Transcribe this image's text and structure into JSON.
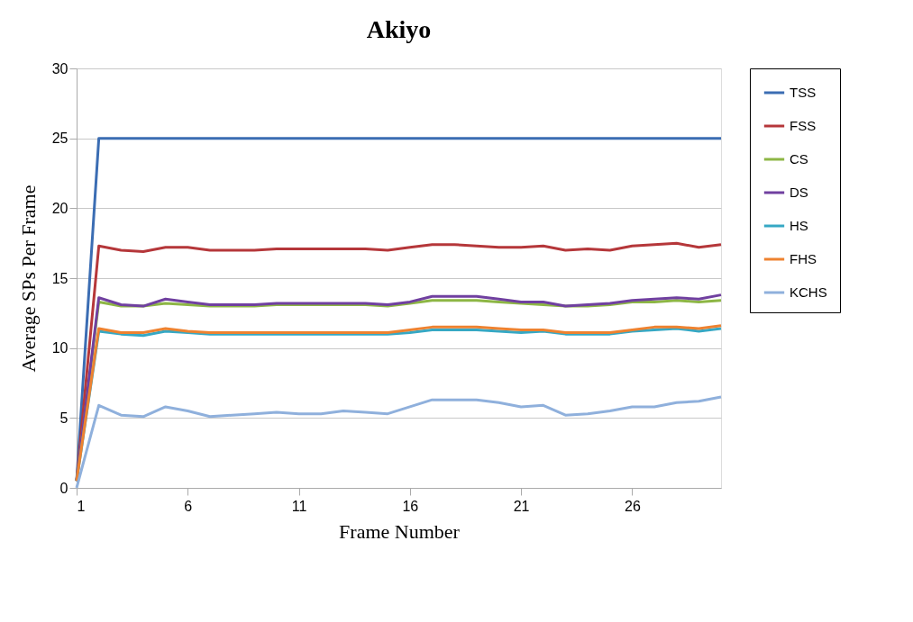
{
  "chart_data": {
    "type": "line",
    "title": "Akiyo",
    "xlabel": "Frame Number",
    "ylabel": "Average SPs Per Frame",
    "x": [
      1,
      2,
      3,
      4,
      5,
      6,
      7,
      8,
      9,
      10,
      11,
      12,
      13,
      14,
      15,
      16,
      17,
      18,
      19,
      20,
      21,
      22,
      23,
      24,
      25,
      26,
      27,
      28,
      29,
      30
    ],
    "xlim": [
      1,
      30
    ],
    "xticks": [
      1,
      6,
      11,
      16,
      21,
      26
    ],
    "ylim": [
      0,
      30
    ],
    "yticks": [
      0,
      5,
      10,
      15,
      20,
      25,
      30
    ],
    "grid": "y",
    "legend": "right",
    "marker": "none",
    "line_style": "solid",
    "series": [
      {
        "name": "TSS",
        "color": "#3b6db3",
        "values": [
          0.5,
          25,
          25,
          25,
          25,
          25,
          25,
          25,
          25,
          25,
          25,
          25,
          25,
          25,
          25,
          25,
          25,
          25,
          25,
          25,
          25,
          25,
          25,
          25,
          25,
          25,
          25,
          25,
          25,
          25
        ]
      },
      {
        "name": "FSS",
        "color": "#b5373a",
        "values": [
          0.5,
          17.3,
          17.0,
          16.9,
          17.2,
          17.2,
          17.0,
          17.0,
          17.0,
          17.1,
          17.1,
          17.1,
          17.1,
          17.1,
          17.0,
          17.2,
          17.4,
          17.4,
          17.3,
          17.2,
          17.2,
          17.3,
          17.0,
          17.1,
          17.0,
          17.3,
          17.4,
          17.5,
          17.2,
          17.4
        ]
      },
      {
        "name": "CS",
        "color": "#8db645",
        "values": [
          0.5,
          13.3,
          13.0,
          13.0,
          13.2,
          13.1,
          13.0,
          13.0,
          13.0,
          13.1,
          13.1,
          13.1,
          13.1,
          13.1,
          13.0,
          13.2,
          13.4,
          13.4,
          13.4,
          13.3,
          13.2,
          13.1,
          13.0,
          13.0,
          13.1,
          13.3,
          13.3,
          13.4,
          13.3,
          13.4
        ]
      },
      {
        "name": "DS",
        "color": "#7040a0",
        "values": [
          0.5,
          13.6,
          13.1,
          13.0,
          13.5,
          13.3,
          13.1,
          13.1,
          13.1,
          13.2,
          13.2,
          13.2,
          13.2,
          13.2,
          13.1,
          13.3,
          13.7,
          13.7,
          13.7,
          13.5,
          13.3,
          13.3,
          13.0,
          13.1,
          13.2,
          13.4,
          13.5,
          13.6,
          13.5,
          13.8
        ]
      },
      {
        "name": "HS",
        "color": "#36a8c4",
        "values": [
          0.5,
          11.2,
          11.0,
          10.9,
          11.2,
          11.1,
          11.0,
          11.0,
          11.0,
          11.0,
          11.0,
          11.0,
          11.0,
          11.0,
          11.0,
          11.1,
          11.3,
          11.3,
          11.3,
          11.2,
          11.1,
          11.2,
          11.0,
          11.0,
          11.0,
          11.2,
          11.3,
          11.4,
          11.2,
          11.4
        ]
      },
      {
        "name": "FHS",
        "color": "#ee8230",
        "values": [
          0.5,
          11.4,
          11.1,
          11.1,
          11.4,
          11.2,
          11.1,
          11.1,
          11.1,
          11.1,
          11.1,
          11.1,
          11.1,
          11.1,
          11.1,
          11.3,
          11.5,
          11.5,
          11.5,
          11.4,
          11.3,
          11.3,
          11.1,
          11.1,
          11.1,
          11.3,
          11.5,
          11.5,
          11.4,
          11.6
        ]
      },
      {
        "name": "KCHS",
        "color": "#8fb0dc",
        "values": [
          0,
          5.9,
          5.2,
          5.1,
          5.8,
          5.5,
          5.1,
          5.2,
          5.3,
          5.4,
          5.3,
          5.3,
          5.5,
          5.4,
          5.3,
          5.8,
          6.3,
          6.3,
          6.3,
          6.1,
          5.8,
          5.9,
          5.2,
          5.3,
          5.5,
          5.8,
          5.8,
          6.1,
          6.2,
          6.5
        ]
      }
    ]
  }
}
